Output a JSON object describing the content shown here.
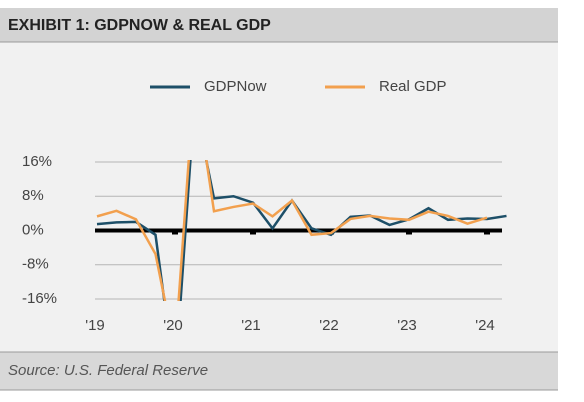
{
  "chart_data": {
    "type": "line",
    "title": "EXHIBIT 1: GDPNOW & REAL GDP",
    "source": "Source: U.S. Federal Reserve",
    "categories": [
      "'19",
      null,
      null,
      null,
      "'20",
      null,
      null,
      null,
      "'21",
      null,
      null,
      null,
      "'22",
      null,
      null,
      null,
      "'23",
      null,
      null,
      null,
      "'24",
      null
    ],
    "series": [
      {
        "name": "GDPNow",
        "color": "#1d4f68",
        "values": [
          1.5,
          1.9,
          2.0,
          -1.0,
          -35,
          30,
          7.5,
          8.0,
          6.5,
          0.5,
          7.0,
          0.5,
          -1.0,
          3.2,
          3.5,
          1.3,
          2.6,
          5.2,
          2.5,
          2.8,
          2.7,
          3.4
        ]
      },
      {
        "name": "Real GDP",
        "color": "#f2a04e",
        "values": [
          3.3,
          4.6,
          2.6,
          -5.5,
          -28,
          35,
          4.5,
          5.5,
          6.3,
          3.3,
          7.0,
          -1.0,
          -0.6,
          2.7,
          3.4,
          2.8,
          2.5,
          4.4,
          3.4,
          1.6,
          3.0,
          null
        ]
      }
    ],
    "ylim": [
      -16,
      16
    ],
    "yticks": [
      {
        "value": -16,
        "label": "-16%"
      },
      {
        "value": -8,
        "label": "-8%"
      },
      {
        "value": 0,
        "label": "0%"
      },
      {
        "value": 8,
        "label": "8%"
      },
      {
        "value": 16,
        "label": "16%"
      }
    ],
    "grid": true
  }
}
